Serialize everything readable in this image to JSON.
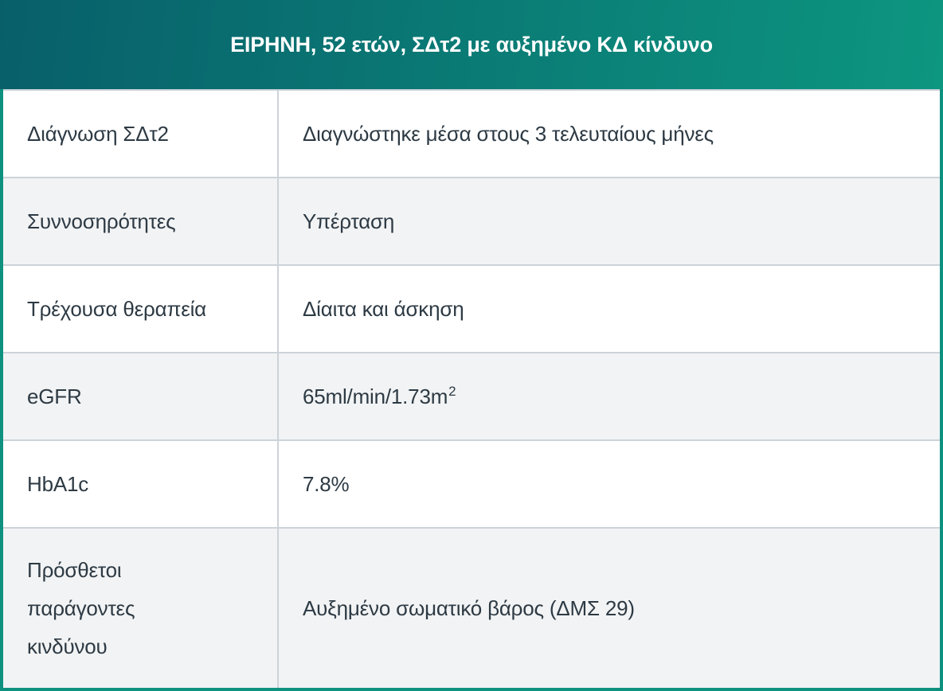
{
  "colors": {
    "header_gradient_left": "#085f6a",
    "header_gradient_right": "#0d9680",
    "frame_border": "#0f9180",
    "row_separator": "#ccd3d9",
    "row_bg": "#ffffff",
    "alt_row_bg": "#f2f3f4",
    "header_text": "#ffffff",
    "body_text": "#2d3a44"
  },
  "header": {
    "title": "ΕΙΡΗΝΗ, 52 ετών, ΣΔτ2 με αυξημένο ΚΔ κίνδυνο"
  },
  "table": {
    "rows": [
      {
        "label": "Διάγνωση ΣΔτ2",
        "value": "Διαγνώστηκε μέσα στους 3 τελευταίους μήνες"
      },
      {
        "label": "Συννοσηρότητες",
        "value": "Υπέρταση"
      },
      {
        "label": "Τρέχουσα θεραπεία",
        "value": "Δίαιτα και άσκηση"
      },
      {
        "label": "eGFR",
        "value": "65ml/min/1.73m",
        "value_superscript": "2"
      },
      {
        "label": "HbA1c",
        "value": "7.8%"
      },
      {
        "label": "Πρόσθετοι παράγοντες κινδύνου",
        "value": "Αυξημένο σωματικό βάρος (ΔΜΣ 29)"
      }
    ]
  }
}
